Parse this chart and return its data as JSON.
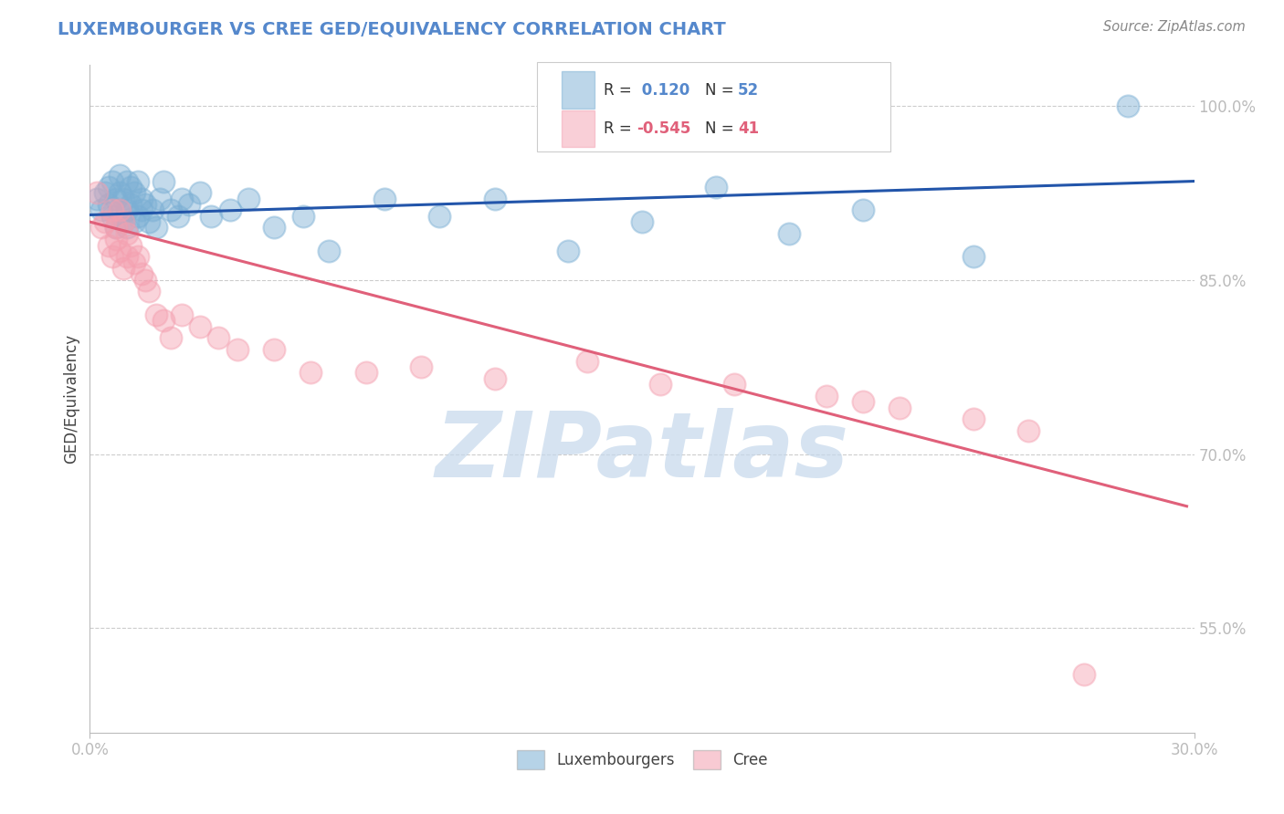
{
  "title": "LUXEMBOURGER VS CREE GED/EQUIVALENCY CORRELATION CHART",
  "source_text": "Source: ZipAtlas.com",
  "ylabel": "GED/Equivalency",
  "x_min": 0.0,
  "x_max": 0.3,
  "y_min": 0.46,
  "y_max": 1.035,
  "x_ticks": [
    0.0,
    0.3
  ],
  "x_tick_labels": [
    "0.0%",
    "30.0%"
  ],
  "y_ticks": [
    0.55,
    0.7,
    0.85,
    1.0
  ],
  "y_tick_labels": [
    "55.0%",
    "70.0%",
    "85.0%",
    "100.0%"
  ],
  "blue_R": 0.12,
  "blue_N": 52,
  "pink_R": -0.545,
  "pink_N": 41,
  "blue_color": "#7BAFD4",
  "pink_color": "#F4A0B0",
  "blue_line_color": "#2255AA",
  "pink_line_color": "#E0607A",
  "watermark": "ZIPatlas",
  "watermark_color": "#C5D8EC",
  "legend_label_blue": "Luxembourgers",
  "legend_label_pink": "Cree",
  "blue_scatter_x": [
    0.002,
    0.003,
    0.004,
    0.005,
    0.005,
    0.006,
    0.006,
    0.007,
    0.007,
    0.008,
    0.008,
    0.008,
    0.009,
    0.009,
    0.01,
    0.01,
    0.01,
    0.011,
    0.011,
    0.012,
    0.012,
    0.013,
    0.013,
    0.014,
    0.014,
    0.015,
    0.016,
    0.017,
    0.018,
    0.019,
    0.02,
    0.022,
    0.024,
    0.025,
    0.027,
    0.03,
    0.033,
    0.038,
    0.043,
    0.05,
    0.058,
    0.065,
    0.08,
    0.095,
    0.11,
    0.13,
    0.15,
    0.17,
    0.19,
    0.21,
    0.24,
    0.282
  ],
  "blue_scatter_y": [
    0.92,
    0.91,
    0.925,
    0.915,
    0.93,
    0.905,
    0.935,
    0.92,
    0.895,
    0.925,
    0.91,
    0.94,
    0.9,
    0.92,
    0.935,
    0.91,
    0.895,
    0.93,
    0.915,
    0.9,
    0.925,
    0.935,
    0.905,
    0.91,
    0.92,
    0.915,
    0.9,
    0.91,
    0.895,
    0.92,
    0.935,
    0.91,
    0.905,
    0.92,
    0.915,
    0.925,
    0.905,
    0.91,
    0.92,
    0.895,
    0.905,
    0.875,
    0.92,
    0.905,
    0.92,
    0.875,
    0.9,
    0.93,
    0.89,
    0.91,
    0.87,
    1.0
  ],
  "pink_scatter_x": [
    0.002,
    0.003,
    0.004,
    0.005,
    0.006,
    0.006,
    0.007,
    0.007,
    0.008,
    0.008,
    0.009,
    0.009,
    0.01,
    0.01,
    0.011,
    0.012,
    0.013,
    0.014,
    0.015,
    0.016,
    0.018,
    0.02,
    0.022,
    0.025,
    0.03,
    0.035,
    0.04,
    0.05,
    0.06,
    0.075,
    0.09,
    0.11,
    0.135,
    0.155,
    0.175,
    0.2,
    0.21,
    0.22,
    0.24,
    0.255,
    0.27
  ],
  "pink_scatter_y": [
    0.925,
    0.895,
    0.9,
    0.88,
    0.91,
    0.87,
    0.885,
    0.895,
    0.875,
    0.91,
    0.86,
    0.9,
    0.87,
    0.89,
    0.88,
    0.865,
    0.87,
    0.855,
    0.85,
    0.84,
    0.82,
    0.815,
    0.8,
    0.82,
    0.81,
    0.8,
    0.79,
    0.79,
    0.77,
    0.77,
    0.775,
    0.765,
    0.78,
    0.76,
    0.76,
    0.75,
    0.745,
    0.74,
    0.73,
    0.72,
    0.51
  ],
  "blue_line_x": [
    0.0,
    0.3
  ],
  "blue_line_y": [
    0.906,
    0.935
  ],
  "pink_line_x": [
    0.0,
    0.298
  ],
  "pink_line_y": [
    0.9,
    0.655
  ]
}
